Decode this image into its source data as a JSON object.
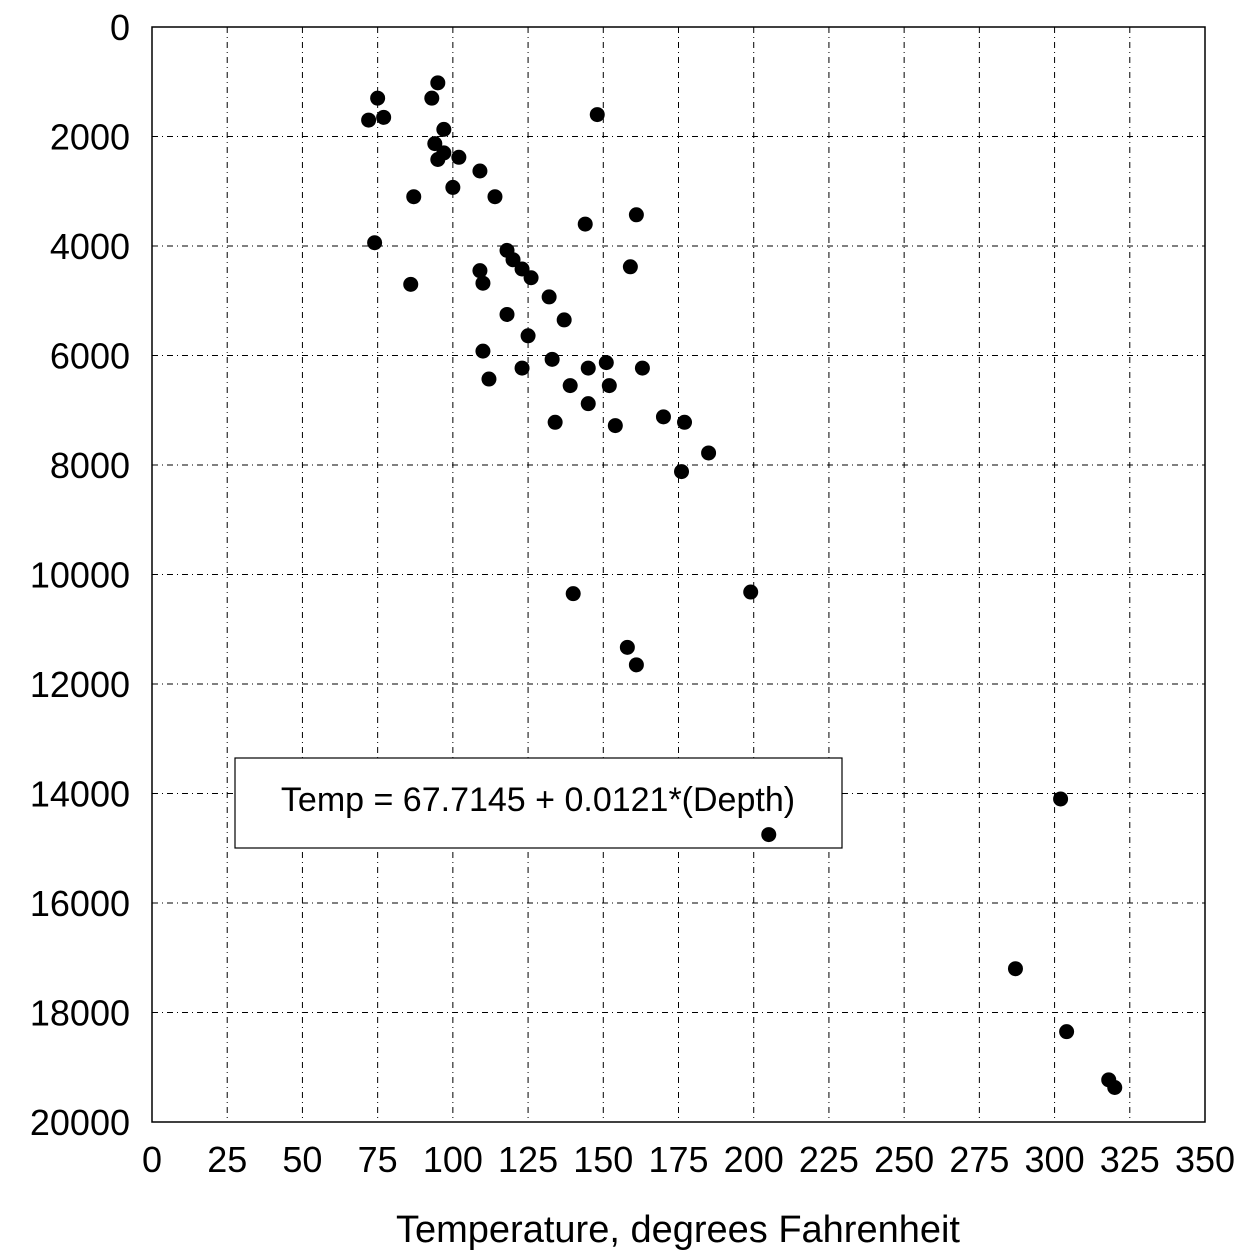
{
  "chart_data": {
    "type": "scatter",
    "title": "",
    "xlabel": "Temperature, degrees Fahrenheit",
    "ylabel": "",
    "xlim": [
      0,
      350
    ],
    "ylim": [
      0,
      20000
    ],
    "y_inverted": true,
    "grid": true,
    "grid_style": "dash-dot",
    "x_ticks": [
      "0",
      "25",
      "50",
      "75",
      "100",
      "125",
      "150",
      "175",
      "200",
      "225",
      "250",
      "275",
      "300",
      "325",
      "350"
    ],
    "y_ticks": [
      "0",
      "2000",
      "4000",
      "6000",
      "8000",
      "10000",
      "12000",
      "14000",
      "16000",
      "18000",
      "20000"
    ],
    "annotation": "Temp = 67.7145 + 0.0121*(Depth)",
    "marker_color": "#000000",
    "points": [
      {
        "x": 72,
        "y": 1700
      },
      {
        "x": 75,
        "y": 1300
      },
      {
        "x": 77,
        "y": 1650
      },
      {
        "x": 95,
        "y": 1020
      },
      {
        "x": 93,
        "y": 1300
      },
      {
        "x": 97,
        "y": 1870
      },
      {
        "x": 94,
        "y": 2130
      },
      {
        "x": 95,
        "y": 2420
      },
      {
        "x": 97,
        "y": 2300
      },
      {
        "x": 102,
        "y": 2380
      },
      {
        "x": 109,
        "y": 2630
      },
      {
        "x": 100,
        "y": 2930
      },
      {
        "x": 87,
        "y": 3100
      },
      {
        "x": 114,
        "y": 3100
      },
      {
        "x": 74,
        "y": 3940
      },
      {
        "x": 148,
        "y": 1600
      },
      {
        "x": 144,
        "y": 3600
      },
      {
        "x": 161,
        "y": 3430
      },
      {
        "x": 118,
        "y": 4080
      },
      {
        "x": 120,
        "y": 4250
      },
      {
        "x": 123,
        "y": 4420
      },
      {
        "x": 126,
        "y": 4580
      },
      {
        "x": 109,
        "y": 4450
      },
      {
        "x": 110,
        "y": 4680
      },
      {
        "x": 86,
        "y": 4700
      },
      {
        "x": 159,
        "y": 4380
      },
      {
        "x": 132,
        "y": 4930
      },
      {
        "x": 118,
        "y": 5250
      },
      {
        "x": 137,
        "y": 5350
      },
      {
        "x": 125,
        "y": 5640
      },
      {
        "x": 110,
        "y": 5920
      },
      {
        "x": 133,
        "y": 6070
      },
      {
        "x": 151,
        "y": 6130
      },
      {
        "x": 145,
        "y": 6230
      },
      {
        "x": 123,
        "y": 6230
      },
      {
        "x": 163,
        "y": 6230
      },
      {
        "x": 112,
        "y": 6430
      },
      {
        "x": 139,
        "y": 6550
      },
      {
        "x": 152,
        "y": 6550
      },
      {
        "x": 145,
        "y": 6880
      },
      {
        "x": 170,
        "y": 7120
      },
      {
        "x": 134,
        "y": 7220
      },
      {
        "x": 177,
        "y": 7220
      },
      {
        "x": 154,
        "y": 7280
      },
      {
        "x": 185,
        "y": 7780
      },
      {
        "x": 176,
        "y": 8120
      },
      {
        "x": 140,
        "y": 10350
      },
      {
        "x": 199,
        "y": 10320
      },
      {
        "x": 158,
        "y": 11330
      },
      {
        "x": 161,
        "y": 11650
      },
      {
        "x": 205,
        "y": 14750
      },
      {
        "x": 302,
        "y": 14100
      },
      {
        "x": 287,
        "y": 17200
      },
      {
        "x": 304,
        "y": 18350
      },
      {
        "x": 318,
        "y": 19230
      },
      {
        "x": 320,
        "y": 19370
      }
    ]
  }
}
